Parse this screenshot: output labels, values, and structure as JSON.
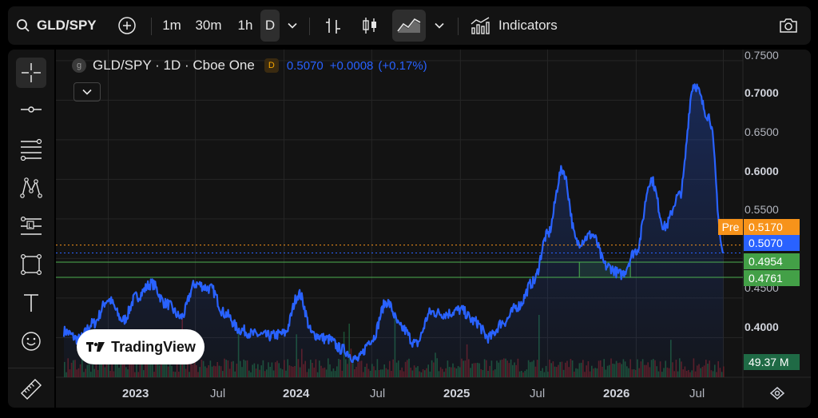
{
  "toolbar": {
    "symbol": "GLD/SPY",
    "intervals": [
      "1m",
      "30m",
      "1h",
      "D"
    ],
    "active_interval": "D",
    "indicators_label": "Indicators"
  },
  "legend": {
    "title": "GLD/SPY · 1D · Cboe One",
    "symbol_icon_letter": "g",
    "badge": "D",
    "last": "0.5070",
    "change": "+0.0008",
    "change_pct": "(+0.17%)"
  },
  "price_scale": {
    "ticks": [
      "0.7500",
      "0.7000",
      "0.6500",
      "0.6000",
      "0.5500",
      "0.4500",
      "0.4000"
    ],
    "pre_label": "Pre",
    "pre_price": "0.5170",
    "last_price": "0.5070",
    "line_1": "0.4954",
    "line_2": "0.4761",
    "volume": "49.37 M"
  },
  "time_scale": {
    "labels": [
      {
        "text": "2023",
        "bold": true
      },
      {
        "text": "Jul",
        "bold": false
      },
      {
        "text": "2024",
        "bold": true
      },
      {
        "text": "Jul",
        "bold": false
      },
      {
        "text": "2025",
        "bold": true
      },
      {
        "text": "Jul",
        "bold": false
      },
      {
        "text": "2026",
        "bold": true
      },
      {
        "text": "Jul",
        "bold": false
      }
    ]
  },
  "watermark": "TradingView",
  "colors": {
    "line": "#2962ff",
    "pre": "#f7931a",
    "last": "#2962ff",
    "horizontal_lines": "#4caf50",
    "volume_up": "#1e5a3a",
    "volume_down": "#6b1f25"
  },
  "chart_data": {
    "type": "line",
    "x_range": [
      "2022-10",
      "2026-07"
    ],
    "ylim": [
      0.36,
      0.76
    ],
    "series": [
      {
        "points": [
          [
            "2022-10-01",
            0.408
          ],
          [
            "2022-11-01",
            0.398
          ],
          [
            "2022-12-01",
            0.418
          ],
          [
            "2023-01-01",
            0.448
          ],
          [
            "2023-02-01",
            0.422
          ],
          [
            "2023-03-01",
            0.452
          ],
          [
            "2023-04-01",
            0.468
          ],
          [
            "2023-05-01",
            0.443
          ],
          [
            "2023-06-01",
            0.426
          ],
          [
            "2023-07-01",
            0.468
          ],
          [
            "2023-08-01",
            0.462
          ],
          [
            "2023-09-01",
            0.43
          ],
          [
            "2023-10-01",
            0.41
          ],
          [
            "2023-11-01",
            0.404
          ],
          [
            "2023-12-01",
            0.402
          ],
          [
            "2024-01-01",
            0.405
          ],
          [
            "2024-02-01",
            0.455
          ],
          [
            "2024-03-01",
            0.404
          ],
          [
            "2024-04-01",
            0.398
          ],
          [
            "2024-05-01",
            0.385
          ],
          [
            "2024-06-01",
            0.372
          ],
          [
            "2024-07-01",
            0.398
          ],
          [
            "2024-08-01",
            0.445
          ],
          [
            "2024-09-01",
            0.412
          ],
          [
            "2024-10-01",
            0.392
          ],
          [
            "2024-11-01",
            0.432
          ],
          [
            "2024-12-01",
            0.43
          ],
          [
            "2025-01-01",
            0.435
          ],
          [
            "2025-02-01",
            0.42
          ],
          [
            "2025-03-01",
            0.4
          ],
          [
            "2025-04-01",
            0.42
          ],
          [
            "2025-05-01",
            0.44
          ],
          [
            "2025-06-01",
            0.47
          ],
          [
            "2025-07-01",
            0.53
          ],
          [
            "2025-08-01",
            0.612
          ],
          [
            "2025-09-01",
            0.52
          ],
          [
            "2025-10-01",
            0.53
          ],
          [
            "2025-11-01",
            0.49
          ],
          [
            "2025-12-01",
            0.48
          ],
          [
            "2026-01-01",
            0.51
          ],
          [
            "2026-02-01",
            0.6
          ],
          [
            "2026-03-01",
            0.54
          ],
          [
            "2026-04-01",
            0.58
          ],
          [
            "2026-05-01",
            0.72
          ],
          [
            "2026-06-01",
            0.68
          ],
          [
            "2026-07-01",
            0.507
          ]
        ]
      }
    ],
    "horizontal_lines": [
      0.4954,
      0.4761
    ],
    "grid": true
  }
}
